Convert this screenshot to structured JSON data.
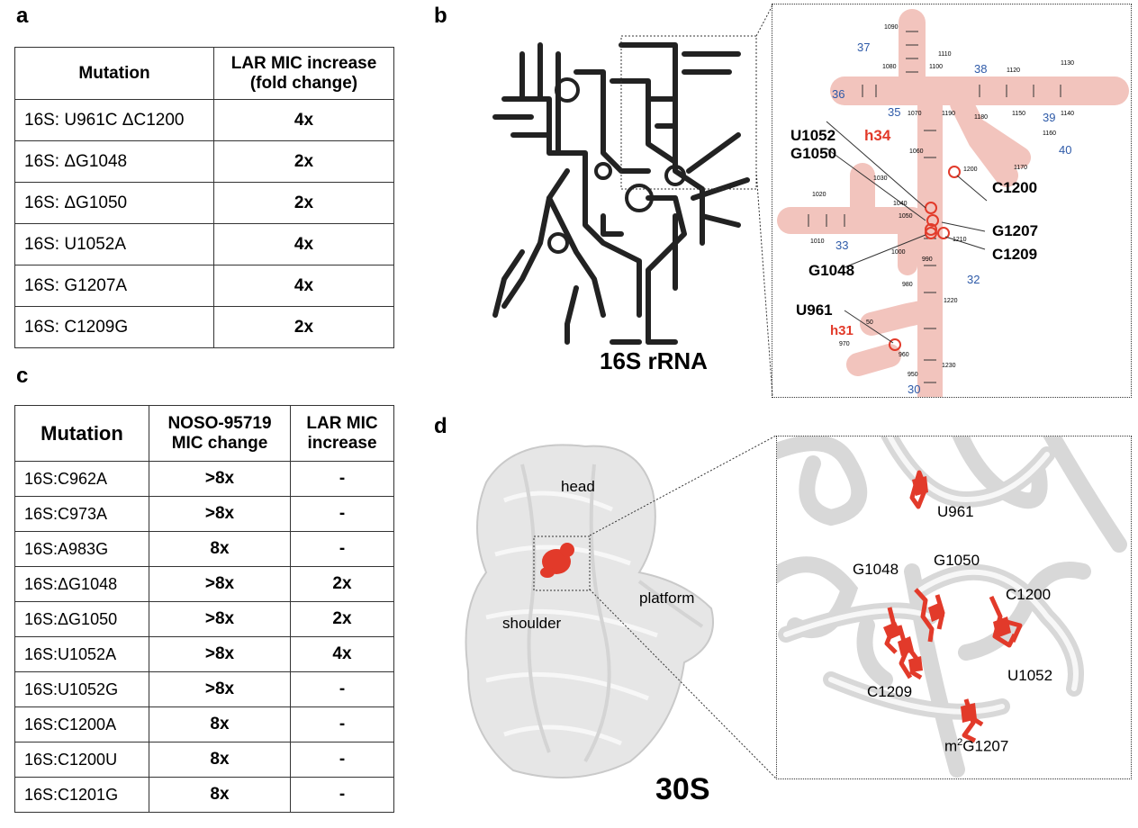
{
  "panel_a": {
    "letter": "a",
    "headers": [
      "Mutation",
      "LAR MIC increase (fold change)"
    ],
    "rows": [
      {
        "mutation": "16S: U961C ΔC1200",
        "value": "4x"
      },
      {
        "mutation": "16S: ΔG1048",
        "value": "2x"
      },
      {
        "mutation": "16S: ΔG1050",
        "value": "2x"
      },
      {
        "mutation": "16S: U1052A",
        "value": "4x"
      },
      {
        "mutation": "16S: G1207A",
        "value": "4x"
      },
      {
        "mutation": "16S: C1209G",
        "value": "2x"
      }
    ]
  },
  "panel_b": {
    "letter": "b",
    "structure_label": "16S rRNA",
    "helix_labels": [
      "h34",
      "h31"
    ],
    "site_labels": [
      "U1052",
      "G1050",
      "C1200",
      "G1207",
      "C1209",
      "G1048",
      "U961"
    ],
    "helix_numbers": [
      "37",
      "36",
      "35",
      "38",
      "39",
      "40",
      "33",
      "32",
      "30"
    ],
    "position_numbers": [
      "1090",
      "1080",
      "1100",
      "1110",
      "1120",
      "1130",
      "1070",
      "1190",
      "1180",
      "1150",
      "1140",
      "1160",
      "1170",
      "1060",
      "1200",
      "1030",
      "1020",
      "1050",
      "1040",
      "1010",
      "1210",
      "1000",
      "990",
      "980",
      "1220",
      "50",
      "970",
      "960",
      "950",
      "1230"
    ]
  },
  "panel_c": {
    "letter": "c",
    "headers": [
      "Mutation",
      "NOSO-95719 MIC change",
      "LAR MIC increase"
    ],
    "rows": [
      {
        "mutation": "16S:C962A",
        "noso": ">8x",
        "lar": "-"
      },
      {
        "mutation": "16S:C973A",
        "noso": ">8x",
        "lar": "-"
      },
      {
        "mutation": "16S:A983G",
        "noso": "8x",
        "lar": "-"
      },
      {
        "mutation": "16S:ΔG1048",
        "noso": ">8x",
        "lar": "2x"
      },
      {
        "mutation": "16S:ΔG1050",
        "noso": ">8x",
        "lar": "2x"
      },
      {
        "mutation": "16S:U1052A",
        "noso": ">8x",
        "lar": "4x"
      },
      {
        "mutation": "16S:U1052G",
        "noso": ">8x",
        "lar": "-"
      },
      {
        "mutation": "16S:C1200A",
        "noso": "8x",
        "lar": "-"
      },
      {
        "mutation": "16S:C1200U",
        "noso": "8x",
        "lar": "-"
      },
      {
        "mutation": "16S:C1201G",
        "noso": "8x",
        "lar": "-"
      }
    ]
  },
  "panel_d": {
    "letter": "d",
    "subunit_label": "30S",
    "region_labels": {
      "head": "head",
      "platform": "platform",
      "shoulder": "shoulder"
    },
    "zoom_labels": {
      "u961": "U961",
      "g1048": "G1048",
      "g1050": "G1050",
      "c1200": "C1200",
      "c1209": "C1209",
      "u1052": "U1052",
      "m2g1207_prefix": "m",
      "m2g1207_sup": "2",
      "m2g1207_suffix": "G1207"
    }
  },
  "colors": {
    "highlight": "#e23a2a",
    "helix_fill": "#f2c4bd",
    "helix_number": "#2e5aa8",
    "nucleotide": "#c0392b",
    "tube": "#e6e6e6"
  }
}
